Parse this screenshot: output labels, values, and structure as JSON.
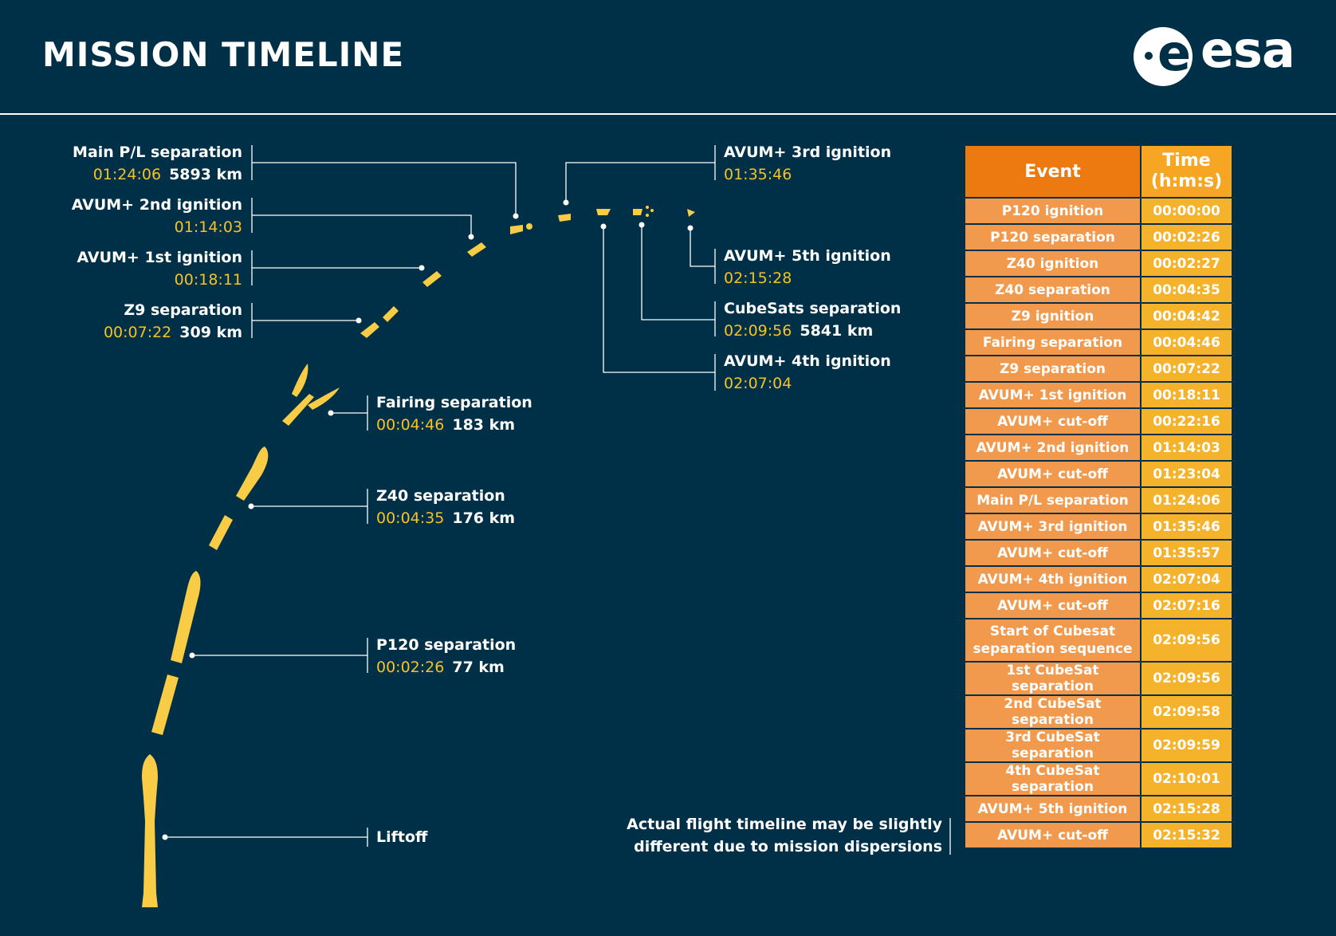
{
  "header": {
    "title": "MISSION TIMELINE",
    "logo_text": "esa",
    "logo_e": "e"
  },
  "colors": {
    "background": "#003047",
    "rocket": "#f8cc45",
    "time_text": "#f6c227",
    "event_header": "#ec7a10",
    "event_cell": "#f19a4e",
    "time_cell": "#f5b22b"
  },
  "callouts": {
    "main_pl": {
      "event": "Main P/L separation",
      "time": "01:24:06",
      "km": "5893 km"
    },
    "avum2": {
      "event": "AVUM+ 2nd ignition",
      "time": "01:14:03"
    },
    "avum1": {
      "event": "AVUM+ 1st ignition",
      "time": "00:18:11"
    },
    "z9sep": {
      "event": "Z9 separation",
      "time": "00:07:22",
      "km": "309 km"
    },
    "fairing": {
      "event": "Fairing separation",
      "time": "00:04:46",
      "km": "183 km"
    },
    "z40sep": {
      "event": "Z40 separation",
      "time": "00:04:35",
      "km": "176 km"
    },
    "p120sep": {
      "event": "P120 separation",
      "time": "00:02:26",
      "km": "77 km"
    },
    "liftoff": {
      "event": "Liftoff"
    },
    "avum3": {
      "event": "AVUM+ 3rd ignition",
      "time": "01:35:46"
    },
    "avum5": {
      "event": "AVUM+ 5th ignition",
      "time": "02:15:28"
    },
    "cubesats": {
      "event": "CubeSats separation",
      "time": "02:09:56",
      "km": "5841 km"
    },
    "avum4": {
      "event": "AVUM+ 4th ignition",
      "time": "02:07:04"
    }
  },
  "note": {
    "line1": "Actual flight timeline may be slightly",
    "line2": "different due to mission dispersions"
  },
  "table": {
    "header_event": "Event",
    "header_time_1": "Time",
    "header_time_2": "(h:m:s)",
    "rows": [
      {
        "event": "P120 ignition",
        "time": "00:00:00"
      },
      {
        "event": "P120 separation",
        "time": "00:02:26"
      },
      {
        "event": "Z40 ignition",
        "time": "00:02:27"
      },
      {
        "event": "Z40 separation",
        "time": "00:04:35"
      },
      {
        "event": "Z9 ignition",
        "time": "00:04:42"
      },
      {
        "event": "Fairing separation",
        "time": "00:04:46"
      },
      {
        "event": "Z9 separation",
        "time": "00:07:22"
      },
      {
        "event": "AVUM+ 1st ignition",
        "time": "00:18:11"
      },
      {
        "event": "AVUM+ cut-off",
        "time": "00:22:16"
      },
      {
        "event": "AVUM+ 2nd ignition",
        "time": "01:14:03"
      },
      {
        "event": "AVUM+ cut-off",
        "time": "01:23:04"
      },
      {
        "event": "Main P/L separation",
        "time": "01:24:06"
      },
      {
        "event": "AVUM+ 3rd ignition",
        "time": "01:35:46"
      },
      {
        "event": "AVUM+ cut-off",
        "time": "01:35:57"
      },
      {
        "event": "AVUM+ 4th ignition",
        "time": "02:07:04"
      },
      {
        "event": "AVUM+ cut-off",
        "time": "02:07:16"
      },
      {
        "event_line1": "Start of Cubesat",
        "event_line2": "separation sequence",
        "time": "02:09:56"
      },
      {
        "event": "1st CubeSat separation",
        "time": "02:09:56"
      },
      {
        "event": "2nd CubeSat separation",
        "time": "02:09:58"
      },
      {
        "event": "3rd CubeSat separation",
        "time": "02:09:59"
      },
      {
        "event": "4th CubeSat separation",
        "time": "02:10:01"
      },
      {
        "event": "AVUM+ 5th ignition",
        "time": "02:15:28"
      },
      {
        "event": "AVUM+ cut-off",
        "time": "02:15:32"
      }
    ]
  }
}
